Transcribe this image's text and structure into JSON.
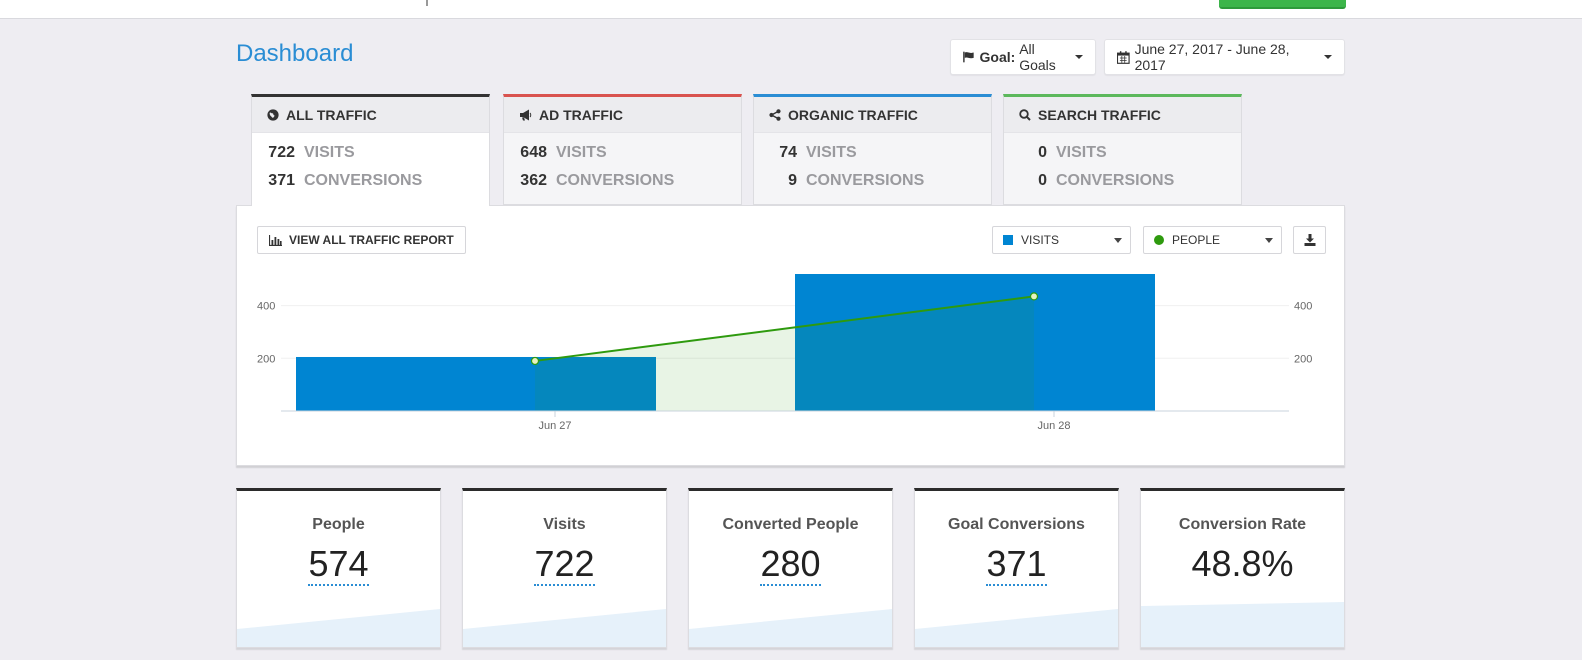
{
  "header": {
    "title": "Dashboard"
  },
  "filters": {
    "goal_prefix": "Goal:",
    "goal_value": "All Goals",
    "date_range": "June 27, 2017 - June 28, 2017"
  },
  "tabs": [
    {
      "title": "ALL TRAFFIC",
      "icon": "globe-icon",
      "accent": "#333333",
      "visits": "722",
      "conversions": "371",
      "visits_label": "VISITS",
      "conversions_label": "CONVERSIONS"
    },
    {
      "title": "AD TRAFFIC",
      "icon": "bullhorn-icon",
      "accent": "#d9534f",
      "visits": "648",
      "conversions": "362",
      "visits_label": "VISITS",
      "conversions_label": "CONVERSIONS"
    },
    {
      "title": "ORGANIC TRAFFIC",
      "icon": "share-icon",
      "accent": "#2a8dd4",
      "visits": "74",
      "conversions": "9",
      "visits_label": "VISITS",
      "conversions_label": "CONVERSIONS"
    },
    {
      "title": "SEARCH TRAFFIC",
      "icon": "search-icon",
      "accent": "#5cb85c",
      "visits": "0",
      "conversions": "0",
      "visits_label": "VISITS",
      "conversions_label": "CONVERSIONS"
    }
  ],
  "chart_controls": {
    "report_button": "VIEW ALL TRAFFIC REPORT",
    "metric_left": "VISITS",
    "metric_left_color": "#0085d2",
    "metric_right": "PEOPLE",
    "metric_right_color": "#2e9a0e"
  },
  "chart_data": {
    "type": "bar",
    "categories": [
      "Jun 27",
      "Jun 28"
    ],
    "series": [
      {
        "type": "bar",
        "values": [
          205,
          520
        ],
        "color": "#0085d2"
      },
      {
        "type": "area",
        "values": [
          190,
          435
        ],
        "color": "#2e9a0e"
      }
    ],
    "y_ticks": [
      200,
      400
    ],
    "ylim": [
      0,
      540
    ],
    "grid": true,
    "dual_axis": true
  },
  "stats": [
    {
      "label": "People",
      "value": "574",
      "underline": true
    },
    {
      "label": "Visits",
      "value": "722",
      "underline": true
    },
    {
      "label": "Converted People",
      "value": "280",
      "underline": true
    },
    {
      "label": "Goal Conversions",
      "value": "371",
      "underline": true
    },
    {
      "label": "Conversion Rate",
      "value": "48.8%",
      "underline": false
    }
  ]
}
